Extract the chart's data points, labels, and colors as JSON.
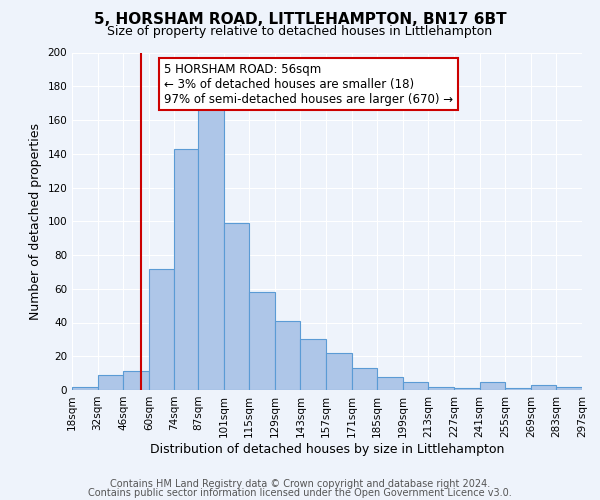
{
  "title": "5, HORSHAM ROAD, LITTLEHAMPTON, BN17 6BT",
  "subtitle": "Size of property relative to detached houses in Littlehampton",
  "xlabel": "Distribution of detached houses by size in Littlehampton",
  "ylabel": "Number of detached properties",
  "bar_edges": [
    18,
    32,
    46,
    60,
    74,
    87,
    101,
    115,
    129,
    143,
    157,
    171,
    185,
    199,
    213,
    227,
    241,
    255,
    269,
    283,
    297
  ],
  "bar_heights": [
    2,
    9,
    11,
    72,
    143,
    167,
    99,
    58,
    41,
    30,
    22,
    13,
    8,
    5,
    2,
    1,
    5,
    1,
    3,
    2
  ],
  "bar_color": "#aec6e8",
  "bar_edge_color": "#5b9bd5",
  "vline_x": 56,
  "vline_color": "#cc0000",
  "annotation_line1": "5 HORSHAM ROAD: 56sqm",
  "annotation_line2": "← 3% of detached houses are smaller (18)",
  "annotation_line3": "97% of semi-detached houses are larger (670) →",
  "ylim": [
    0,
    200
  ],
  "yticks": [
    0,
    20,
    40,
    60,
    80,
    100,
    120,
    140,
    160,
    180,
    200
  ],
  "tick_labels": [
    "18sqm",
    "32sqm",
    "46sqm",
    "60sqm",
    "74sqm",
    "87sqm",
    "101sqm",
    "115sqm",
    "129sqm",
    "143sqm",
    "157sqm",
    "171sqm",
    "185sqm",
    "199sqm",
    "213sqm",
    "227sqm",
    "241sqm",
    "255sqm",
    "269sqm",
    "283sqm",
    "297sqm"
  ],
  "footer_line1": "Contains HM Land Registry data © Crown copyright and database right 2024.",
  "footer_line2": "Contains public sector information licensed under the Open Government Licence v3.0.",
  "bg_color": "#eef3fb",
  "plot_bg_color": "#eef3fb",
  "title_fontsize": 11,
  "subtitle_fontsize": 9,
  "ylabel_fontsize": 9,
  "xlabel_fontsize": 9,
  "tick_fontsize": 7.5,
  "annotation_fontsize": 8.5,
  "footer_fontsize": 7
}
